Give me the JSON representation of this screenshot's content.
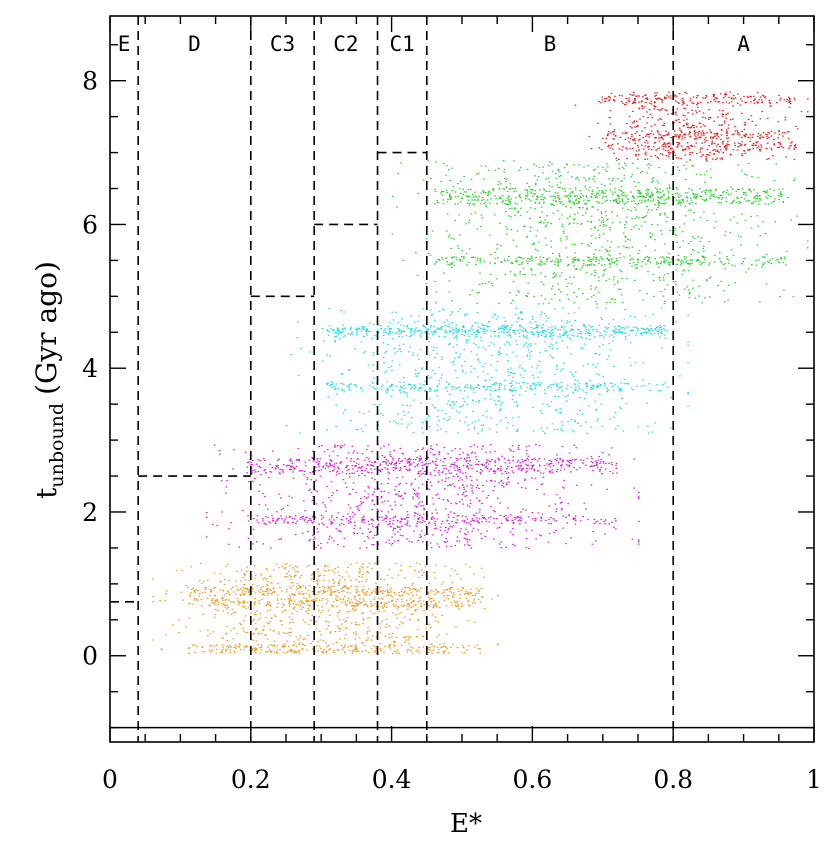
{
  "chart_data": {
    "type": "scatter",
    "title": "",
    "xlabel": "E*",
    "ylabel": {
      "main": "t",
      "subscript": "unbound",
      "suffix": "(Gyr ago)"
    },
    "xlim": [
      0,
      1
    ],
    "ylim": [
      -1.2,
      8.9
    ],
    "xticks": [
      0,
      0.2,
      0.4,
      0.6,
      0.8,
      1
    ],
    "xtick_labels": [
      "0",
      "0.2",
      "0.4",
      "0.6",
      "0.8",
      "1"
    ],
    "yticks": [
      0,
      2,
      4,
      6,
      8
    ],
    "ytick_labels": [
      "0",
      "2",
      "4",
      "6",
      "8"
    ],
    "baseline_y": -1.0,
    "regions": [
      {
        "label": "E",
        "x_min": 0.0,
        "x_max": 0.04
      },
      {
        "label": "D",
        "x_min": 0.04,
        "x_max": 0.2
      },
      {
        "label": "C3",
        "x_min": 0.2,
        "x_max": 0.29
      },
      {
        "label": "C2",
        "x_min": 0.29,
        "x_max": 0.38
      },
      {
        "label": "C1",
        "x_min": 0.38,
        "x_max": 0.45
      },
      {
        "label": "B",
        "x_min": 0.45,
        "x_max": 0.8
      },
      {
        "label": "A",
        "x_min": 0.8,
        "x_max": 1.0
      }
    ],
    "region_time_thresholds": [
      {
        "region": "E",
        "y": 0.75
      },
      {
        "region": "D",
        "y": 2.5
      },
      {
        "region": "C3",
        "y": 5.0
      },
      {
        "region": "C2",
        "y": 6.0
      },
      {
        "region": "C1",
        "y": 7.0
      }
    ],
    "series": [
      {
        "name": "orange",
        "color": "#ee9a22",
        "x_range": [
          0.06,
          0.55
        ],
        "y_range": [
          0.05,
          1.3
        ],
        "dense_lines": [
          0.1,
          0.9,
          0.75
        ],
        "count": 1400
      },
      {
        "name": "magenta",
        "color": "#d61ed6",
        "x_range": [
          0.13,
          0.75
        ],
        "y_range": [
          1.5,
          2.95
        ],
        "dense_lines": [
          2.7,
          2.6,
          1.9
        ],
        "count": 1500
      },
      {
        "name": "cyan",
        "color": "#22d8e8",
        "x_range": [
          0.25,
          0.82
        ],
        "y_range": [
          3.1,
          4.85
        ],
        "dense_lines": [
          4.55,
          4.5,
          3.75
        ],
        "count": 1400
      },
      {
        "name": "green",
        "color": "#2ad02a",
        "x_range": [
          0.4,
          0.99
        ],
        "y_range": [
          4.9,
          6.9
        ],
        "dense_lines": [
          6.45,
          6.35,
          5.5
        ],
        "count": 1600
      },
      {
        "name": "red",
        "color": "#e02020",
        "x_range": [
          0.66,
          0.99
        ],
        "y_range": [
          6.9,
          7.85
        ],
        "dense_lines": [
          7.25,
          7.75,
          7.1
        ],
        "count": 800
      }
    ]
  }
}
